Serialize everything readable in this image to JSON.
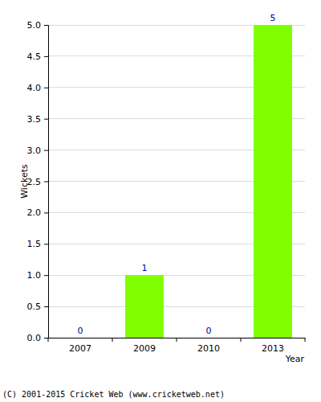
{
  "chart_data": {
    "type": "bar",
    "categories": [
      "2007",
      "2009",
      "2010",
      "2013"
    ],
    "values": [
      0,
      1,
      0,
      5
    ],
    "color": "#80ff00",
    "ylim": [
      0,
      5
    ],
    "yticks": [
      {
        "value": 0,
        "label": "0.0"
      },
      {
        "value": 0.5,
        "label": "0.5"
      },
      {
        "value": 1,
        "label": "1.0"
      },
      {
        "value": 1.5,
        "label": "1.5"
      },
      {
        "value": 2,
        "label": "2.0"
      },
      {
        "value": 2.5,
        "label": "2.5"
      },
      {
        "value": 3,
        "label": "3.0"
      },
      {
        "value": 3.5,
        "label": "3.5"
      },
      {
        "value": 4,
        "label": "4.0"
      },
      {
        "value": 4.5,
        "label": "4.5"
      },
      {
        "value": 5,
        "label": "5.0"
      }
    ],
    "grid": true,
    "data_labels": true,
    "x_label": "Year",
    "y_label": "Wickets",
    "annotation": "(C) 2001-2015 Cricket Web (www.cricketweb.net)"
  }
}
